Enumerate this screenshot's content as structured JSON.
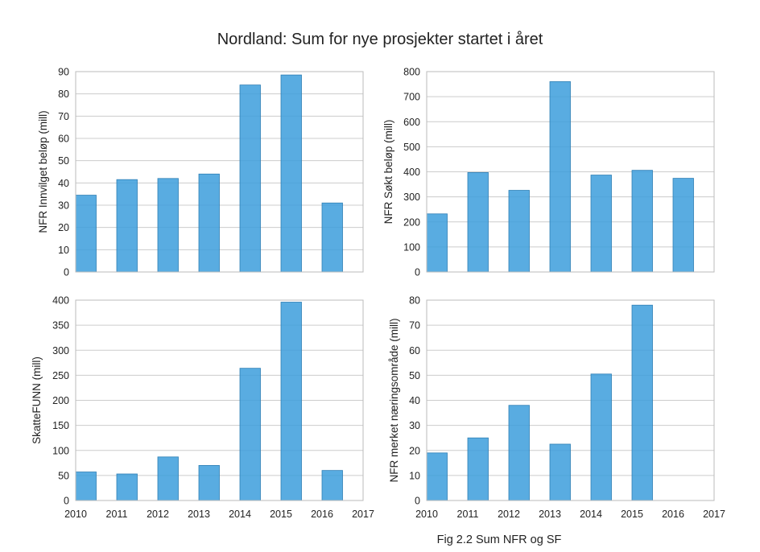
{
  "title": "Nordland: Sum for nye prosjekter startet i året",
  "caption": "Fig 2.2 Sum NFR og SF",
  "colors": {
    "bar": "#3c9ddc",
    "grid": "#cccccc"
  },
  "chart_data": [
    {
      "type": "bar",
      "ylabel": "NFR Innvilget beløp (mill)",
      "categories": [
        "2010",
        "2011",
        "2012",
        "2013",
        "2014",
        "2015",
        "2016"
      ],
      "values": [
        34.5,
        41.5,
        42,
        44,
        84,
        88.5,
        31
      ],
      "ylim": [
        0,
        90
      ],
      "yticks": [
        0,
        10,
        20,
        30,
        40,
        50,
        60,
        70,
        80,
        90
      ],
      "grid": true
    },
    {
      "type": "bar",
      "ylabel": "NFR Søkt beløp (mill)",
      "categories": [
        "2010",
        "2011",
        "2012",
        "2013",
        "2014",
        "2015",
        "2016"
      ],
      "values": [
        232,
        397,
        326,
        760,
        387,
        406,
        374
      ],
      "ylim": [
        0,
        800
      ],
      "yticks": [
        0,
        100,
        200,
        300,
        400,
        500,
        600,
        700,
        800
      ],
      "grid": true
    },
    {
      "type": "bar",
      "ylabel": "SkatteFUNN (mill)",
      "categories": [
        "2010",
        "2011",
        "2012",
        "2013",
        "2014",
        "2015",
        "2016"
      ],
      "values": [
        57,
        53,
        87,
        70,
        264,
        396,
        60
      ],
      "ylim": [
        0,
        400
      ],
      "yticks": [
        0,
        50,
        100,
        150,
        200,
        250,
        300,
        350,
        400
      ],
      "xticks": [
        "2010",
        "2011",
        "2012",
        "2013",
        "2014",
        "2015",
        "2016",
        "2017"
      ],
      "grid": true
    },
    {
      "type": "bar",
      "ylabel": "NFR merket næringsområde (mill)",
      "categories": [
        "2010",
        "2011",
        "2012",
        "2013",
        "2014",
        "2015",
        "2016"
      ],
      "values": [
        19,
        25,
        38,
        22.5,
        50.5,
        78,
        0
      ],
      "ylim": [
        0,
        80
      ],
      "yticks": [
        0,
        10,
        20,
        30,
        40,
        50,
        60,
        70,
        80
      ],
      "xticks": [
        "2010",
        "2011",
        "2012",
        "2013",
        "2014",
        "2015",
        "2016",
        "2017"
      ],
      "grid": true
    }
  ]
}
